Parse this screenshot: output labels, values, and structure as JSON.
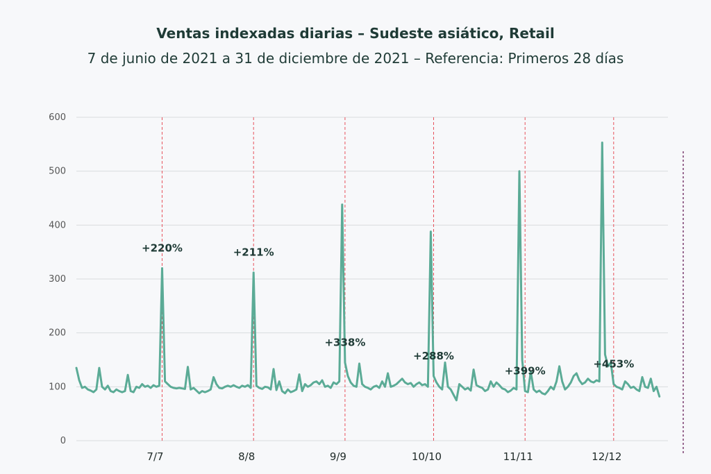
{
  "chart_data": {
    "type": "line",
    "title": "Ventas indexadas diarias – Sudeste asiático, Retail",
    "subtitle": "7 de junio de 2021 a 31 de diciembre de 2021 – Referencia: Primeros 28 días",
    "xlabel": "",
    "ylabel": "",
    "ylim": [
      0,
      600
    ],
    "yticks": [
      0,
      100,
      200,
      300,
      400,
      500,
      600
    ],
    "grid": true,
    "x_start": "2021-06-07",
    "x_end": "2021-12-31",
    "x_ticks": [
      {
        "date": "2021-07-07",
        "label": "7/7"
      },
      {
        "date": "2021-08-08",
        "label": "8/8"
      },
      {
        "date": "2021-09-09",
        "label": "9/9"
      },
      {
        "date": "2021-10-10",
        "label": "10/10"
      },
      {
        "date": "2021-11-11",
        "label": "11/11"
      },
      {
        "date": "2021-12-12",
        "label": "12/12"
      }
    ],
    "annotations": [
      {
        "date": "2021-07-07",
        "label": "+220%"
      },
      {
        "date": "2021-08-08",
        "label": "+211%"
      },
      {
        "date": "2021-09-09",
        "label": "+338%"
      },
      {
        "date": "2021-10-10",
        "label": "+288%"
      },
      {
        "date": "2021-11-11",
        "label": "+399%"
      },
      {
        "date": "2021-12-12",
        "label": "+453%"
      }
    ],
    "series": [
      {
        "color": "#5bab96",
        "values": [
          135,
          112,
          98,
          100,
          95,
          93,
          90,
          95,
          135,
          100,
          95,
          102,
          92,
          90,
          95,
          92,
          90,
          92,
          122,
          92,
          90,
          100,
          98,
          105,
          100,
          102,
          98,
          103,
          100,
          102,
          320,
          110,
          105,
          100,
          98,
          97,
          98,
          97,
          96,
          137,
          95,
          98,
          93,
          88,
          92,
          90,
          92,
          95,
          118,
          105,
          98,
          97,
          100,
          102,
          100,
          103,
          100,
          98,
          102,
          100,
          103,
          98,
          312,
          102,
          98,
          96,
          100,
          99,
          95,
          133,
          94,
          110,
          92,
          88,
          95,
          90,
          92,
          95,
          123,
          92,
          105,
          100,
          103,
          108,
          110,
          105,
          112,
          100,
          102,
          98,
          108,
          105,
          110,
          438,
          145,
          120,
          108,
          102,
          100,
          143,
          105,
          100,
          98,
          95,
          100,
          102,
          98,
          110,
          100,
          125,
          100,
          102,
          105,
          110,
          115,
          108,
          105,
          107,
          100,
          105,
          108,
          103,
          105,
          100,
          388,
          120,
          108,
          100,
          95,
          145,
          100,
          95,
          85,
          75,
          105,
          100,
          95,
          98,
          93,
          132,
          103,
          100,
          98,
          92,
          95,
          110,
          100,
          108,
          103,
          97,
          95,
          90,
          93,
          98,
          95,
          500,
          150,
          92,
          90,
          128,
          95,
          90,
          93,
          88,
          86,
          92,
          100,
          95,
          110,
          138,
          110,
          95,
          100,
          108,
          120,
          125,
          112,
          105,
          108,
          115,
          110,
          108,
          112,
          110,
          553,
          160,
          138,
          145,
          105,
          100,
          98,
          95,
          110,
          105,
          98,
          100,
          95,
          92,
          118,
          100,
          98,
          115,
          92,
          100,
          82
        ]
      }
    ]
  }
}
